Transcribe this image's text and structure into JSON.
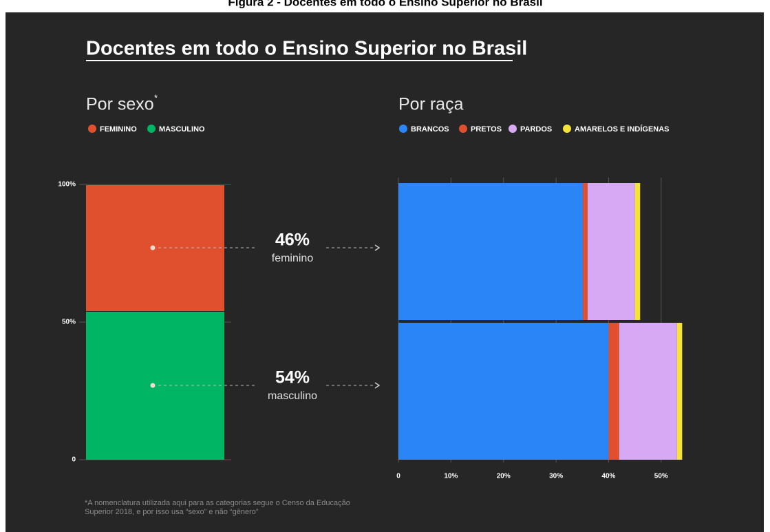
{
  "caption": "Figura 2 - Docentes em todo o Ensino Superior no Brasil",
  "title": "Docentes em todo o Ensino Superior no Brasil",
  "footnote": [
    "*A nomenclatura utilizada aqui para as categorias segue o Censo da Educação",
    "Superior 2018, e por isso usa “sexo” e não “gênero”"
  ],
  "chart_data": [
    {
      "type": "bar",
      "stacked": true,
      "subtitle": "Por sexo",
      "subtitle_mark": "*",
      "categories": [
        null
      ],
      "series": [
        {
          "name": "FEMININO",
          "color": "#e0502e",
          "values": [
            46
          ],
          "value_labels": [
            "46%"
          ]
        },
        {
          "name": "MASCULINO",
          "color": "#00b563",
          "values": [
            54
          ],
          "value_labels": [
            "54%"
          ]
        }
      ],
      "ylim": [
        0,
        100
      ],
      "yticks": [
        0,
        {
          "value": 50,
          "label": "50%"
        },
        {
          "value": 100,
          "label": "100%"
        }
      ],
      "grid": true
    },
    {
      "type": "barh",
      "stacked": true,
      "subtitle": "Por raça",
      "categories": [
        "feminino",
        "masculino"
      ],
      "series": [
        {
          "name": "BRANCOS",
          "color": "#2a86f7",
          "values": [
            35.1,
            40.0
          ]
        },
        {
          "name": "PRETOS",
          "color": "#e0502e",
          "values": [
            0.9,
            2.0
          ]
        },
        {
          "name": "PARDOS",
          "color": "#d7a9f5",
          "values": [
            9.0,
            11.0
          ]
        },
        {
          "name": "AMARELOS E INDÍGENAS",
          "color": "#f5e33a",
          "values": [
            1.0,
            1.0
          ]
        }
      ],
      "xlim": [
        0,
        55
      ],
      "xticks": [
        0,
        {
          "value": 10,
          "label": "10%"
        },
        {
          "value": 20,
          "label": "20%"
        },
        {
          "value": 30,
          "label": "30%"
        },
        {
          "value": 40,
          "label": "40%"
        },
        {
          "value": 50,
          "label": "50%"
        }
      ],
      "grid": true
    }
  ]
}
